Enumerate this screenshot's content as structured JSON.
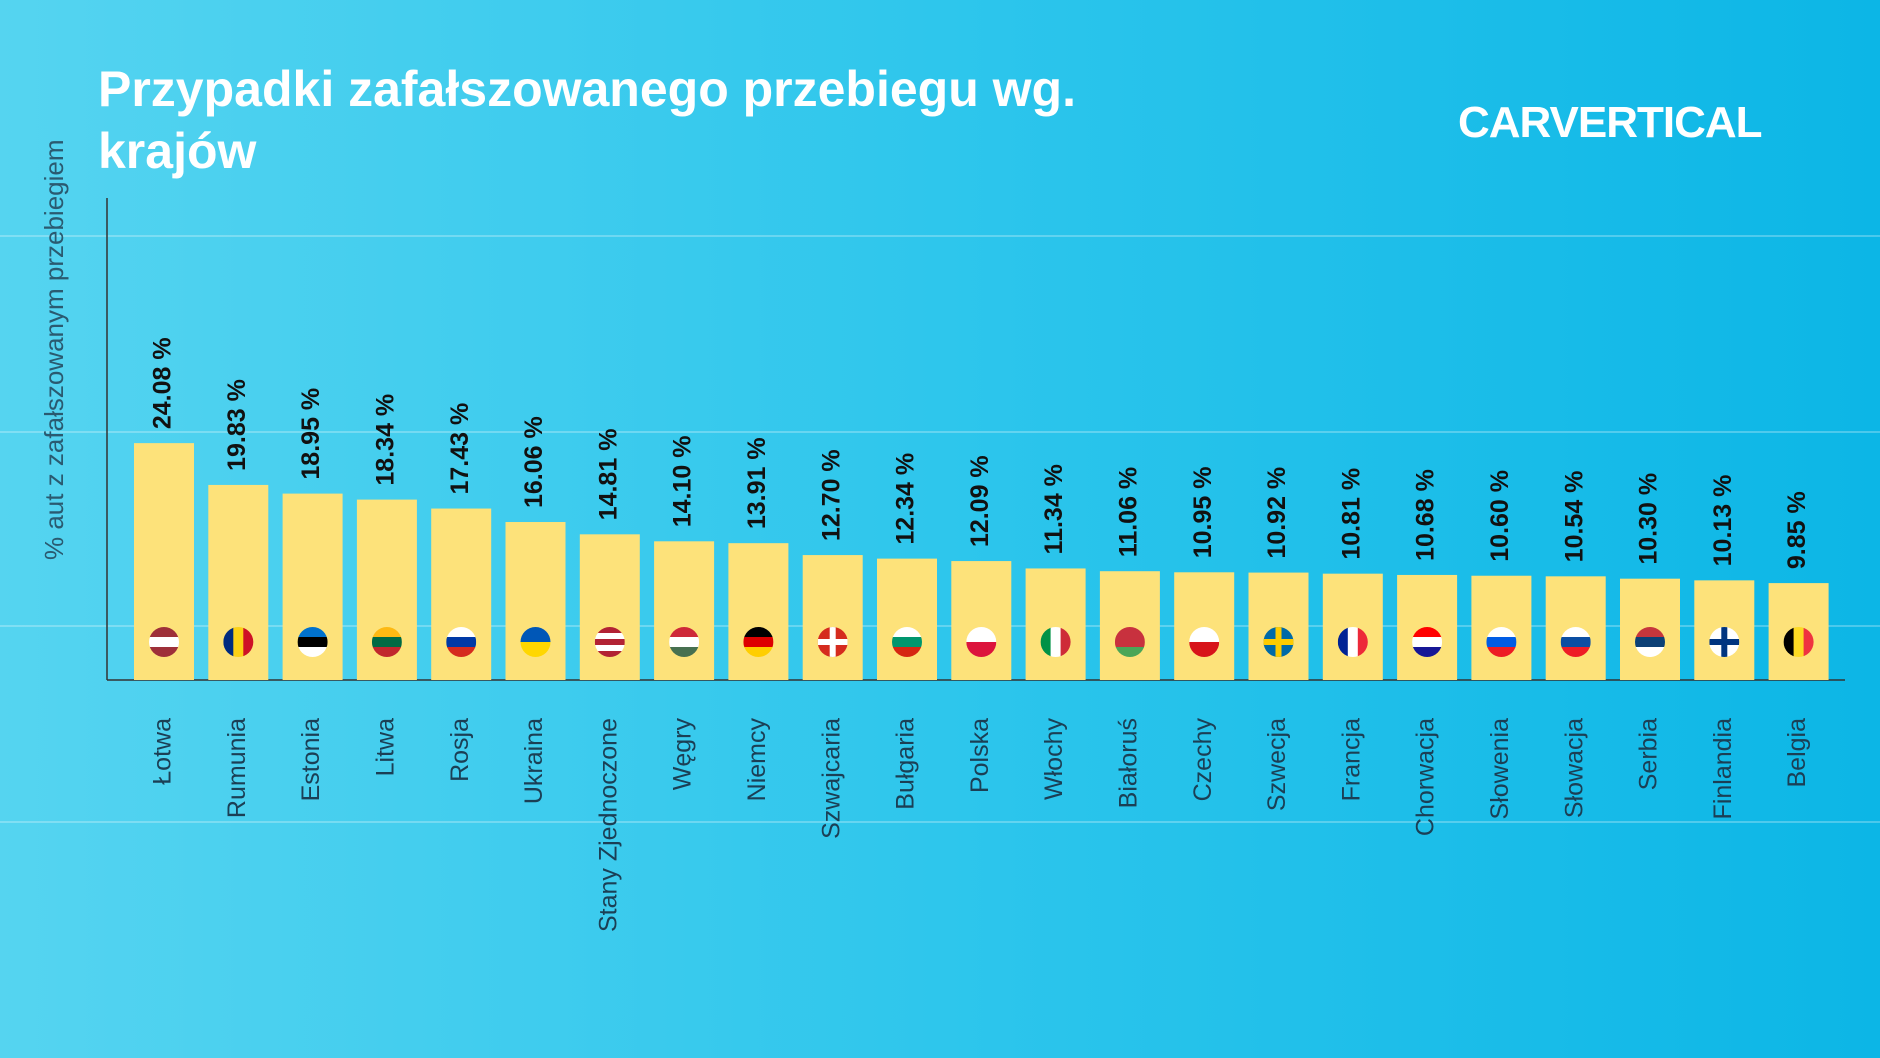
{
  "chart_data": {
    "type": "bar",
    "title": "Przypadki zafałszowanego przebiegu wg. krajów",
    "logo": "CARVERTICAL",
    "y_label": "% aut z zafałszowanym przebiegiem",
    "categories": [
      "Łotwa",
      "Rumunia",
      "Estonia",
      "Litwa",
      "Rosja",
      "Ukraina",
      "Stany Zjednoczone",
      "Węgry",
      "Niemcy",
      "Szwajcaria",
      "Bułgaria",
      "Polska",
      "Włochy",
      "Białoruś",
      "Czechy",
      "Szwecja",
      "Francja",
      "Chorwacja",
      "Słowenia",
      "Słowacja",
      "Serbia",
      "Finlandia",
      "Belgia"
    ],
    "values": [
      24.08,
      19.83,
      18.95,
      18.34,
      17.43,
      16.06,
      14.81,
      14.1,
      13.91,
      12.7,
      12.34,
      12.09,
      11.34,
      11.06,
      10.95,
      10.92,
      10.81,
      10.68,
      10.6,
      10.54,
      10.3,
      10.13,
      9.85
    ],
    "value_labels": [
      "24.08 %",
      "19.83 %",
      "18.95 %",
      "18.34 %",
      "17.43 %",
      "16.06 %",
      "14.81 %",
      "14.10 %",
      "13.91 %",
      "12.70 %",
      "12.34 %",
      "12.09 %",
      "11.34 %",
      "11.06 %",
      "10.95 %",
      "10.92 %",
      "10.81 %",
      "10.68 %",
      "10.60 %",
      "10.54 %",
      "10.30 %",
      "10.13 %",
      "9.85 %"
    ],
    "color": "#fde27a",
    "ylim": [
      0,
      49
    ]
  }
}
